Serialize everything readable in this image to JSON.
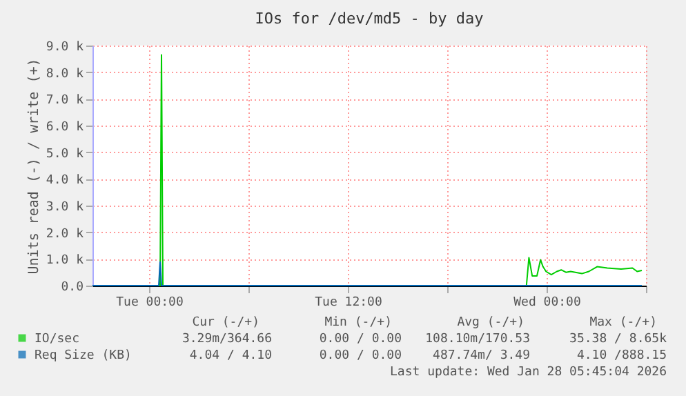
{
  "chart_data": {
    "type": "line",
    "title": "IOs for /dev/md5 - by day",
    "ylabel": "Units read (-) / write (+)",
    "xlim": [
      "2026-01-26T20:35",
      "2026-01-28T06:00"
    ],
    "xticks": [
      {
        "value": "2026-01-27T00:00",
        "label": "Tue 00:00"
      },
      {
        "value": "2026-01-27T06:00",
        "label": null
      },
      {
        "value": "2026-01-27T12:00",
        "label": "Tue 12:00"
      },
      {
        "value": "2026-01-27T18:00",
        "label": null
      },
      {
        "value": "2026-01-28T00:00",
        "label": "Wed 00:00"
      },
      {
        "value": "2026-01-28T06:00",
        "label": null
      }
    ],
    "ylim": [
      0,
      9000
    ],
    "yticks": [
      {
        "value": 0,
        "label": "0.0"
      },
      {
        "value": 1000,
        "label": "1.0 k"
      },
      {
        "value": 2000,
        "label": "2.0 k"
      },
      {
        "value": 3000,
        "label": "3.0 k"
      },
      {
        "value": 4000,
        "label": "4.0 k"
      },
      {
        "value": 5000,
        "label": "5.0 k"
      },
      {
        "value": 6000,
        "label": "6.0 k"
      },
      {
        "value": 7000,
        "label": "7.0 k"
      },
      {
        "value": 8000,
        "label": "8.0 k"
      },
      {
        "value": 9000,
        "label": "9.0 k"
      }
    ],
    "grid": true,
    "legend": "bottom",
    "series": [
      {
        "name": "IO/sec",
        "color": "#00cc00",
        "x": [
          "2026-01-26T20:35",
          "2026-01-27T00:40",
          "2026-01-27T00:45",
          "2026-01-27T00:50",
          "2026-01-27T22:47",
          "2026-01-27T22:56",
          "2026-01-27T23:08",
          "2026-01-27T23:25",
          "2026-01-27T23:38",
          "2026-01-27T23:47",
          "2026-01-27T23:58",
          "2026-01-28T00:17",
          "2026-01-28T00:37",
          "2026-01-28T00:53",
          "2026-01-28T01:10",
          "2026-01-28T01:27",
          "2026-01-28T02:08",
          "2026-01-28T02:33",
          "2026-01-28T03:03",
          "2026-01-28T03:40",
          "2026-01-28T04:30",
          "2026-01-28T05:11",
          "2026-01-28T05:28",
          "2026-01-28T05:45"
        ],
        "values": [
          0,
          0,
          8650,
          0,
          0,
          1050,
          360,
          360,
          970,
          710,
          530,
          410,
          530,
          590,
          500,
          530,
          450,
          530,
          710,
          660,
          620,
          660,
          530,
          570
        ]
      },
      {
        "name": "Req Size (KB)",
        "color": "#0066b3",
        "x": [
          "2026-01-26T20:35",
          "2026-01-27T00:35",
          "2026-01-27T00:40",
          "2026-01-27T00:45",
          "2026-01-28T05:45"
        ],
        "values": [
          0,
          0,
          888,
          0,
          0
        ]
      }
    ],
    "annotations": [
      "Cur (-/+)",
      "Min (-/+)",
      "Avg (-/+)",
      "Max (-/+)",
      "3.29m/364.66",
      "0.00 / 0.00",
      "108.10m/170.53",
      "35.38 / 8.65k",
      "4.04 / 4.10",
      "0.00 / 0.00",
      "487.74m/ 3.49",
      "4.10 /888.15",
      "Last update: Wed Jan 28 05:45:04 2026"
    ]
  }
}
